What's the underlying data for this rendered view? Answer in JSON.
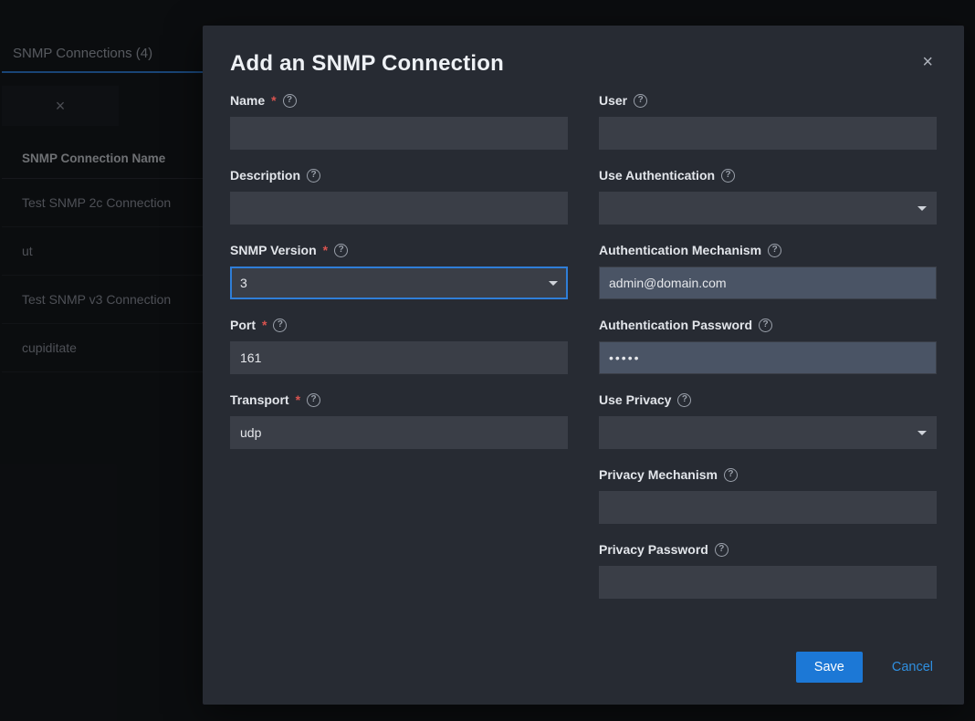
{
  "page": {
    "tab_label": "SNMP Connections (4)",
    "table": {
      "header": "SNMP Connection Name",
      "rows": [
        "Test SNMP 2c Connection",
        "ut",
        "Test SNMP v3 Connection",
        "cupiditate"
      ]
    }
  },
  "dialog": {
    "title": "Add an SNMP Connection",
    "save_label": "Save",
    "cancel_label": "Cancel",
    "left": {
      "name": {
        "label": "Name",
        "required": true,
        "value": ""
      },
      "description": {
        "label": "Description",
        "required": false,
        "value": ""
      },
      "version": {
        "label": "SNMP Version",
        "required": true,
        "value": "3"
      },
      "port": {
        "label": "Port",
        "required": true,
        "value": "161"
      },
      "transport": {
        "label": "Transport",
        "required": true,
        "value": "udp"
      }
    },
    "right": {
      "user": {
        "label": "User",
        "required": false,
        "value": ""
      },
      "use_auth": {
        "label": "Use Authentication",
        "required": false,
        "value": ""
      },
      "auth_mech": {
        "label": "Authentication Mechanism",
        "required": false,
        "value": "admin@domain.com"
      },
      "auth_pw": {
        "label": "Authentication Password",
        "required": false,
        "value": "•••••"
      },
      "use_priv": {
        "label": "Use Privacy",
        "required": false,
        "value": ""
      },
      "priv_mech": {
        "label": "Privacy Mechanism",
        "required": false,
        "value": ""
      },
      "priv_pw": {
        "label": "Privacy Password",
        "required": false,
        "value": ""
      }
    }
  },
  "colors": {
    "page_bg": "#15181d",
    "dialog_bg": "#272b33",
    "input_bg": "#3a3e47",
    "input_filled_bg": "#4a5465",
    "accent": "#2f7ed8",
    "required": "#d9534f",
    "text_muted": "#9ea4ae"
  }
}
